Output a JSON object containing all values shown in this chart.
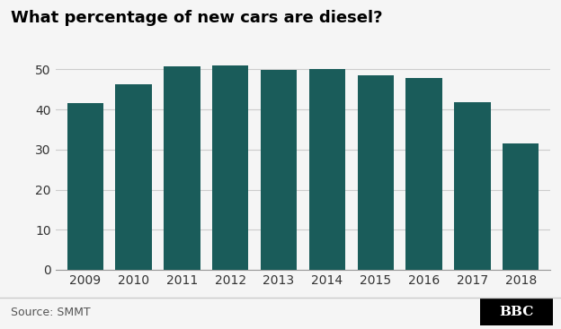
{
  "title": "What percentage of new cars are diesel?",
  "categories": [
    "2009",
    "2010",
    "2011",
    "2012",
    "2013",
    "2014",
    "2015",
    "2016",
    "2017",
    "2018"
  ],
  "values": [
    41.5,
    46.2,
    50.7,
    50.9,
    49.9,
    50.2,
    48.5,
    47.9,
    41.8,
    31.5
  ],
  "bar_color": "#1a5c5a",
  "background_color": "#f5f5f5",
  "ylim": [
    0,
    55
  ],
  "yticks": [
    0,
    10,
    20,
    30,
    40,
    50
  ],
  "source_text": "Source: SMMT",
  "bbc_text": "BBC",
  "title_fontsize": 13,
  "tick_fontsize": 10,
  "source_fontsize": 9
}
